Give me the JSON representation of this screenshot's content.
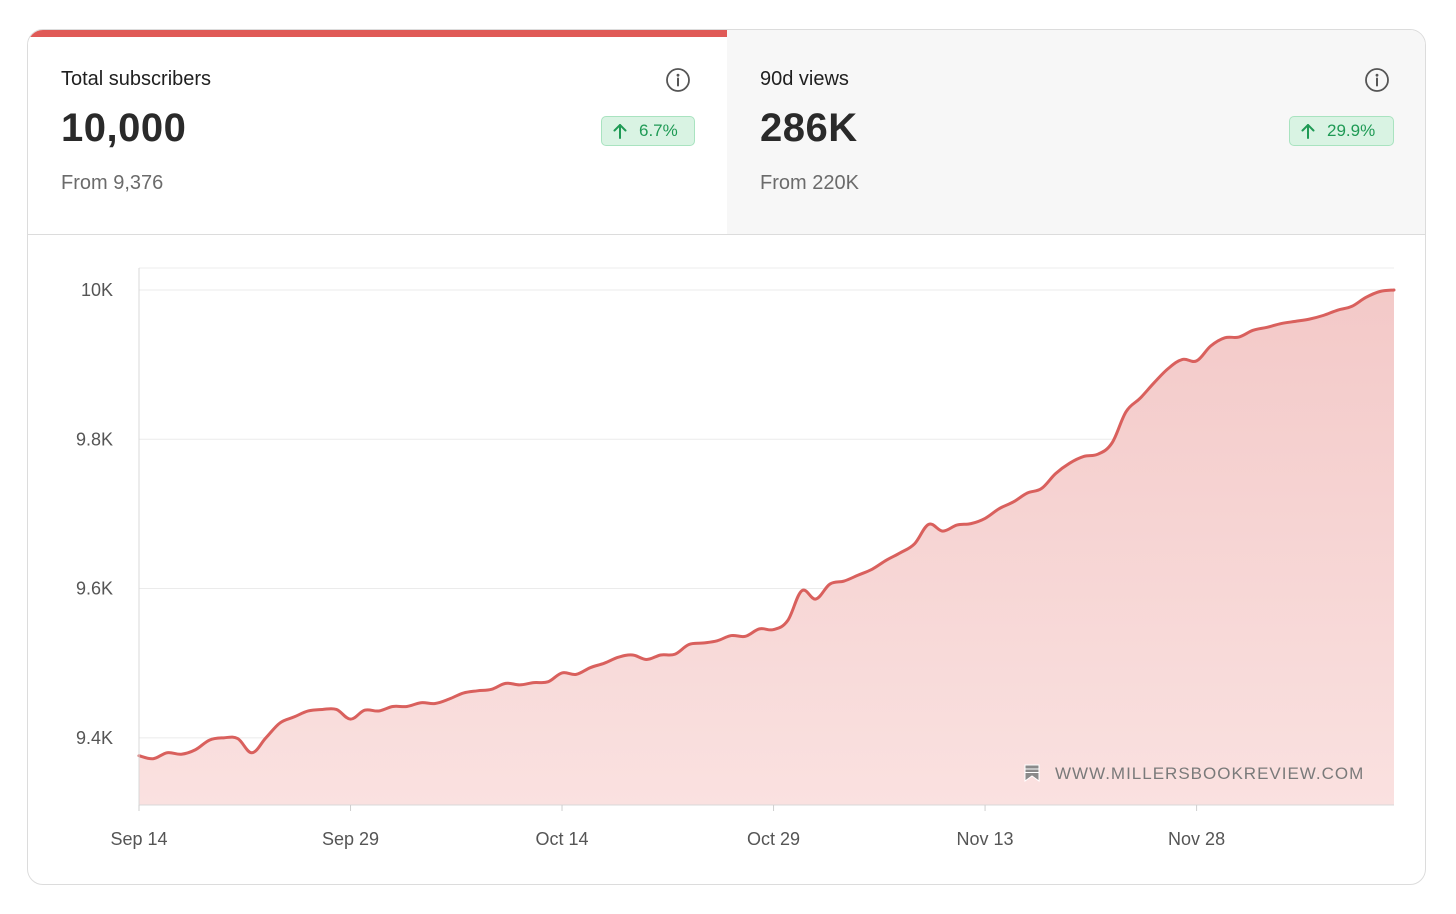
{
  "tabs": [
    {
      "label": "Total subscribers",
      "value": "10,000",
      "change": "6.7%",
      "from": "From 9,376",
      "active": true
    },
    {
      "label": "90d views",
      "value": "286K",
      "change": "29.9%",
      "from": "From 220K",
      "active": false
    }
  ],
  "colors": {
    "accent": "#e05a57",
    "line": "#d9605d",
    "area": "#f6d3d2",
    "badge_bg": "#d9f3e3",
    "badge_text": "#1f9a55"
  },
  "watermark": "WWW.MILLERSBOOKREVIEW.COM",
  "chart_data": {
    "type": "area",
    "x_tick_labels": [
      "Sep 14",
      "Sep 29",
      "Oct 14",
      "Oct 29",
      "Nov 13",
      "Nov 28"
    ],
    "y_tick_labels": [
      "9.4K",
      "9.6K",
      "9.8K",
      "10K"
    ],
    "y_ticks": [
      9400,
      9600,
      9800,
      10000
    ],
    "ylim": [
      9310,
      10000
    ],
    "x_start": "Sep 14",
    "x_end": "Dec 12",
    "grid": "horizontal",
    "series": [
      {
        "values": [
          9376,
          9372,
          9380,
          9378,
          9384,
          9397,
          9400,
          9399,
          9380,
          9400,
          9420,
          9428,
          9436,
          9438,
          9438,
          9425,
          9437,
          9436,
          9442,
          9442,
          9447,
          9446,
          9452,
          9460,
          9463,
          9465,
          9473,
          9471,
          9474,
          9475,
          9487,
          9485,
          9494,
          9500,
          9508,
          9511,
          9505,
          9511,
          9512,
          9525,
          9527,
          9530,
          9537,
          9536,
          9546,
          9545,
          9557,
          9597,
          9586,
          9606,
          9610,
          9618,
          9626,
          9638,
          9648,
          9660,
          9686,
          9677,
          9685,
          9687,
          9694,
          9707,
          9716,
          9728,
          9734,
          9754,
          9768,
          9777,
          9780,
          9795,
          9837,
          9855,
          9876,
          9895,
          9907,
          9905,
          9925,
          9936,
          9937,
          9946,
          9950,
          9955,
          9958,
          9961,
          9966,
          9973,
          9978,
          9990,
          9998,
          10000
        ]
      }
    ]
  }
}
